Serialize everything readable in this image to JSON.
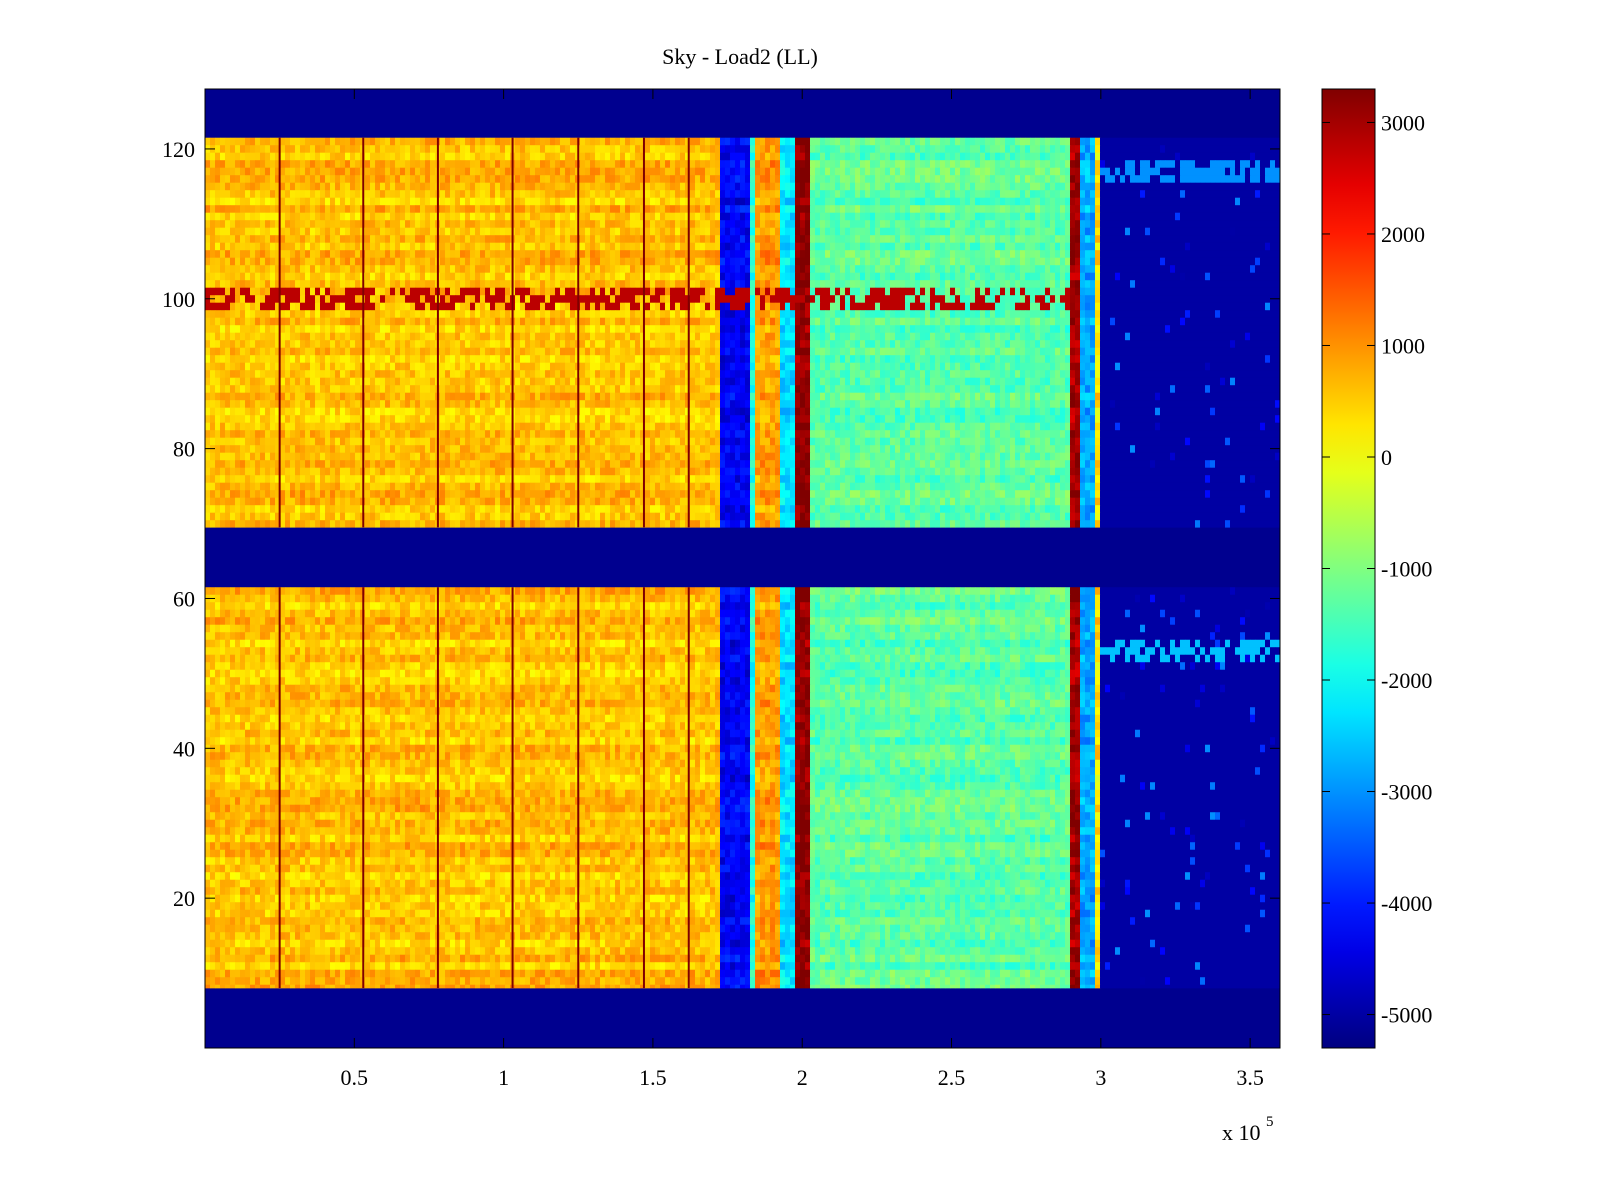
{
  "chart_data": {
    "type": "heatmap",
    "title": "Sky - Load2 (LL)",
    "xlabel": "",
    "ylabel": "",
    "x_exponent_label": "x 10",
    "x_exponent_power": "5",
    "xlim": [
      0,
      3.6
    ],
    "ylim": [
      0,
      128
    ],
    "x_ticks": [
      0.5,
      1,
      1.5,
      2,
      2.5,
      3,
      3.5
    ],
    "x_tick_labels": [
      "0.5",
      "1",
      "1.5",
      "2",
      "2.5",
      "3",
      "3.5"
    ],
    "y_ticks": [
      20,
      40,
      60,
      80,
      100,
      120
    ],
    "y_tick_labels": [
      "20",
      "40",
      "60",
      "80",
      "100",
      "120"
    ],
    "colorbar": {
      "colormap": "jet",
      "range": [
        -5300,
        3300
      ],
      "ticks": [
        3000,
        2000,
        1000,
        0,
        -1000,
        -2000,
        -3000,
        -4000,
        -5000
      ],
      "tick_labels": [
        "3000",
        "2000",
        "1000",
        "0",
        "-1000",
        "-2000",
        "-3000",
        "-4000",
        "-5000"
      ]
    },
    "empty_value": -5300,
    "channel_bands": [
      [
        8,
        61.5
      ],
      [
        69.5,
        121.5
      ]
    ],
    "segments": [
      {
        "x": [
          0,
          1.72
        ],
        "value": 600,
        "label": "orange region"
      },
      {
        "x": [
          1.72,
          1.82
        ],
        "value": -4300,
        "label": "blue band"
      },
      {
        "x": [
          1.82,
          1.84
        ],
        "value": -1800,
        "label": "cyan edge"
      },
      {
        "x": [
          1.84,
          1.93
        ],
        "value": 900,
        "label": "orange band"
      },
      {
        "x": [
          1.93,
          1.98
        ],
        "value": -2300,
        "label": "cyan band"
      },
      {
        "x": [
          1.98,
          2.03
        ],
        "value": 3200,
        "label": "dark red band"
      },
      {
        "x": [
          2.03,
          2.9
        ],
        "value": -1300,
        "label": "green-cyan region"
      },
      {
        "x": [
          2.9,
          2.925
        ],
        "value": 3000,
        "label": "dark red line"
      },
      {
        "x": [
          2.925,
          2.98
        ],
        "value": -2800,
        "label": "blue-cyan strip"
      },
      {
        "x": [
          2.98,
          3.0
        ],
        "value": 300,
        "label": "yellow strip"
      },
      {
        "x": [
          3.0,
          3.6
        ],
        "value": -5000,
        "label": "mostly empty"
      }
    ],
    "vertical_lines_x": [
      0.25,
      0.53,
      0.78,
      1.03,
      1.25,
      1.47,
      1.62
    ],
    "row_features": [
      {
        "y": 100,
        "x": [
          0,
          2.9
        ],
        "value": 2800,
        "label": "red dashed row"
      },
      {
        "y": 117,
        "x": [
          3.0,
          3.6
        ],
        "value": -3000,
        "label": "upper blue rows"
      },
      {
        "y": 53,
        "x": [
          3.0,
          3.6
        ],
        "value": -2600,
        "label": "light blue row"
      }
    ]
  }
}
